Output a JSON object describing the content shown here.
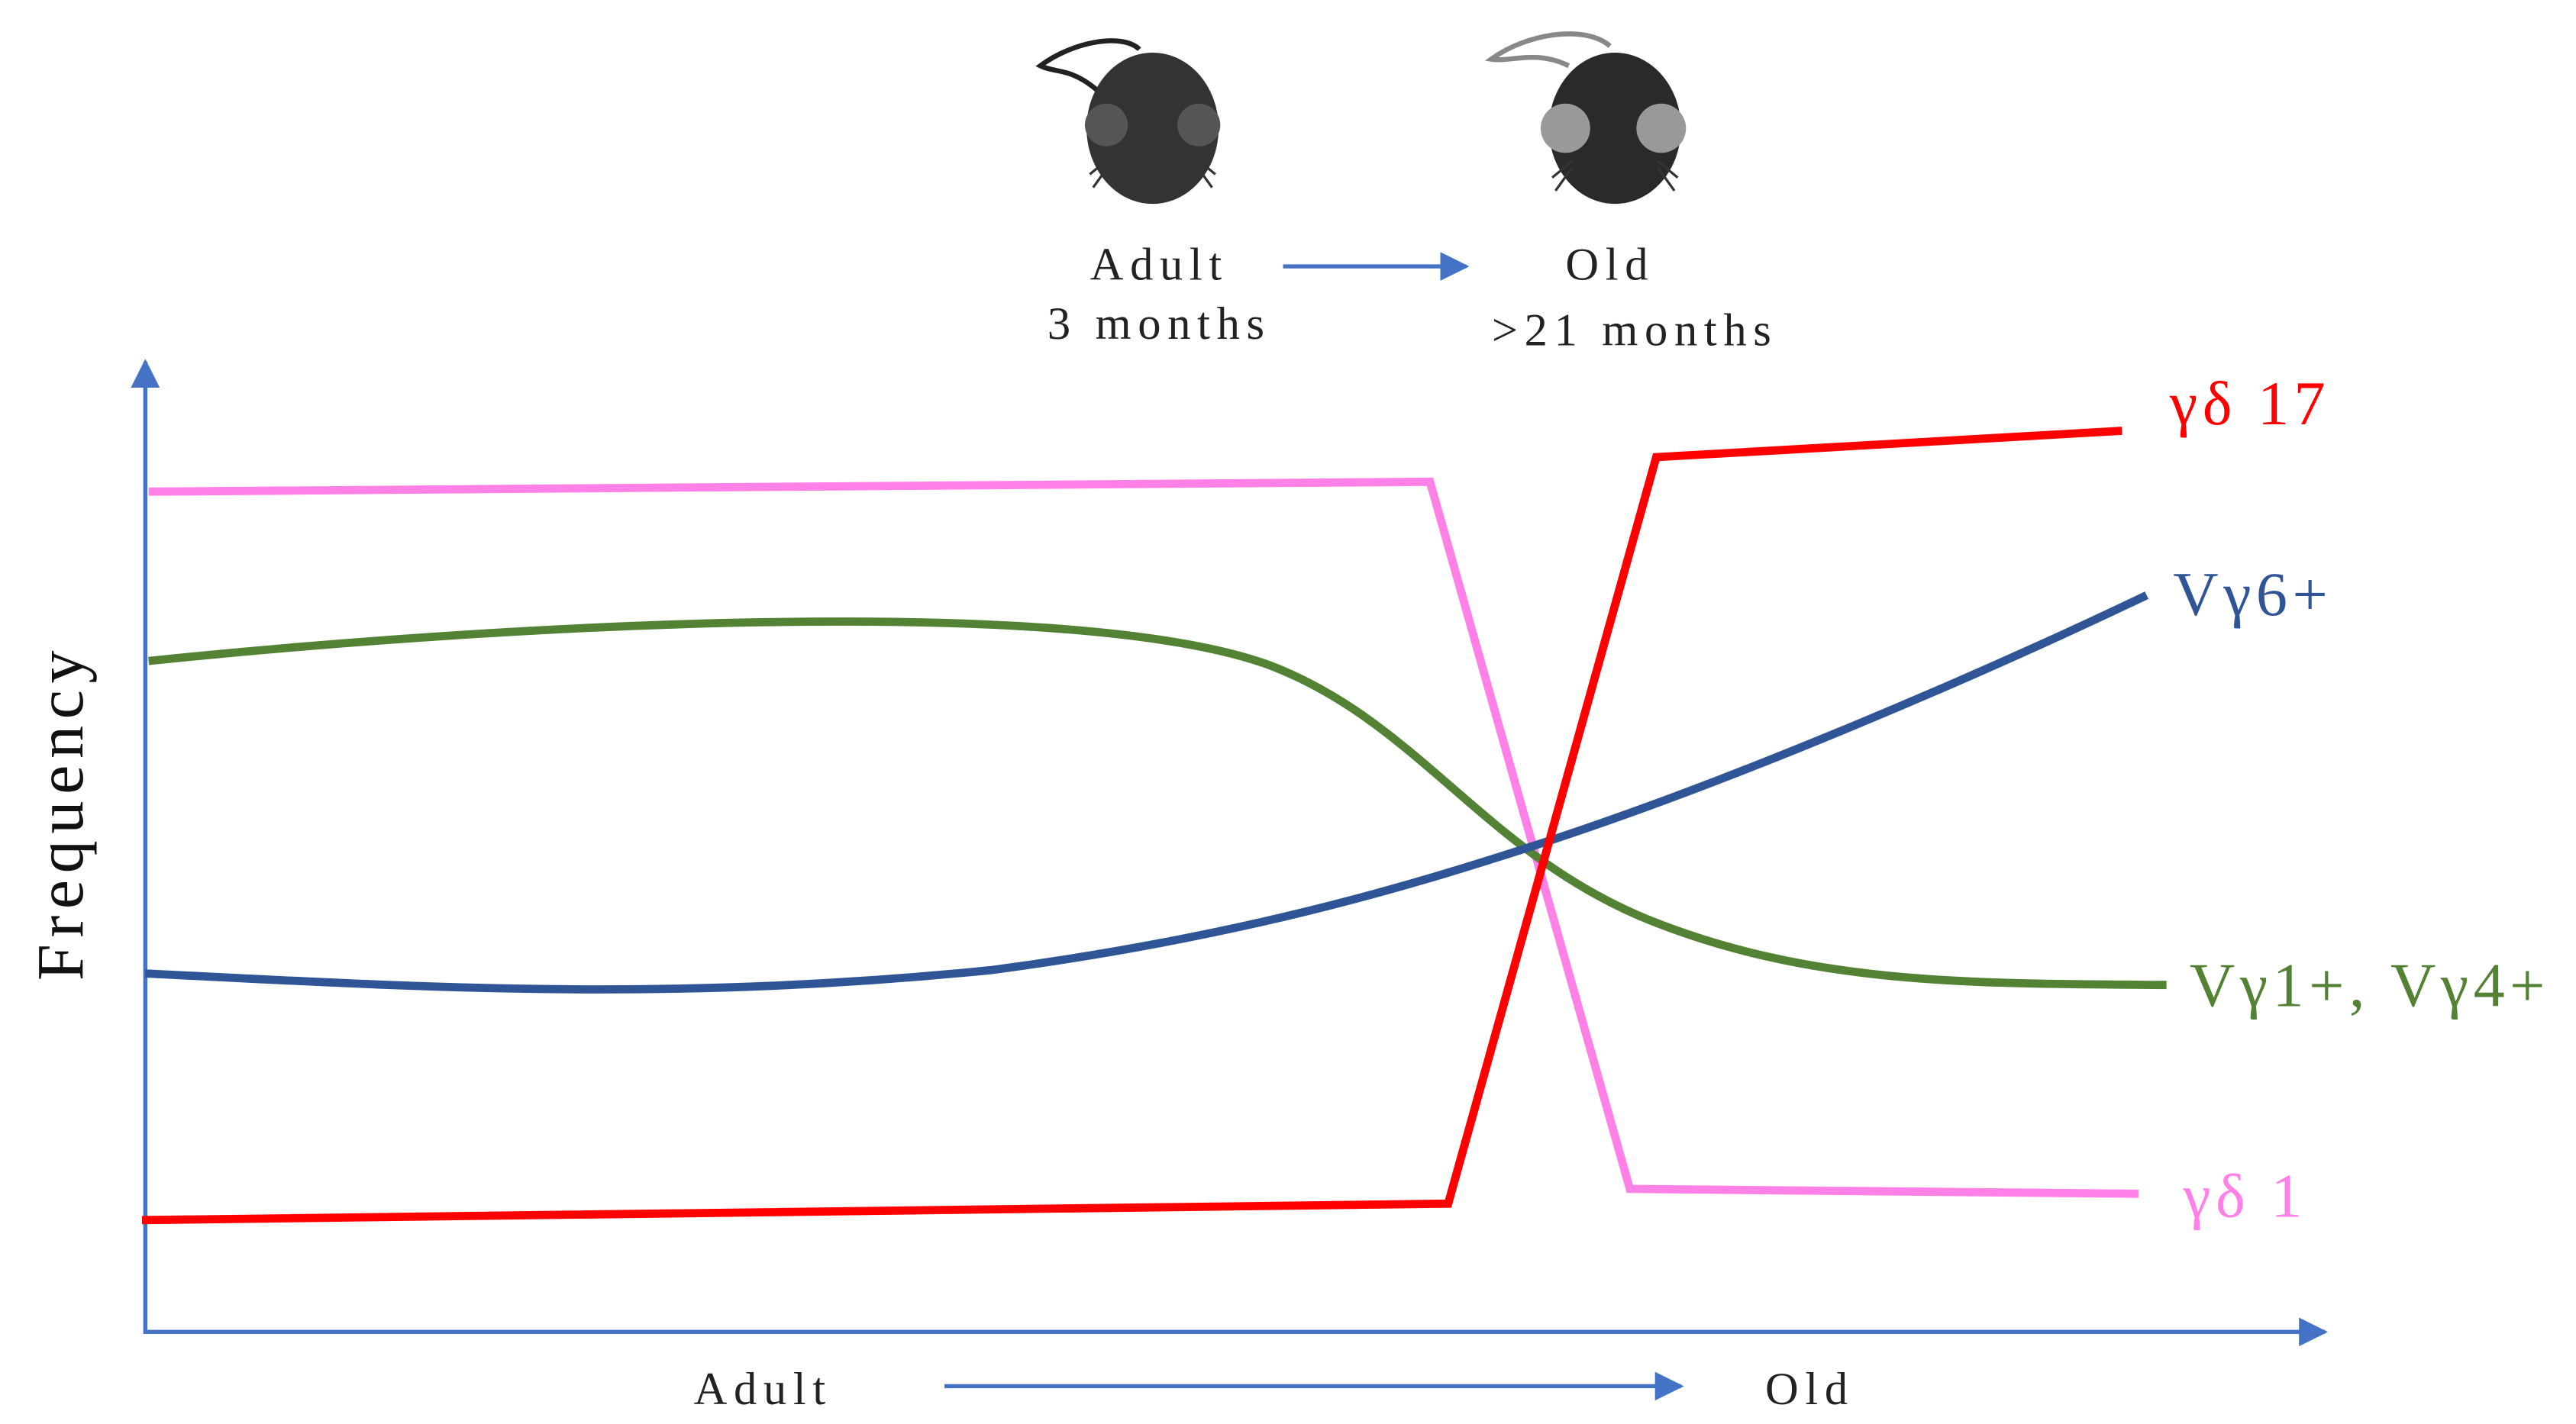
{
  "header": {
    "start": {
      "label": "Adult",
      "age": "3 months"
    },
    "end": {
      "label": "Old",
      "age": ">21 months"
    }
  },
  "axis": {
    "y_label": "Frequency",
    "x_start": "Adult",
    "x_end": "Old"
  },
  "lines": [
    {
      "label": "γδ 17",
      "color": "#ff0000"
    },
    {
      "label": "Vγ6+",
      "color": "#2f5597"
    },
    {
      "label": "Vγ1+, Vγ4+",
      "color": "#548235"
    },
    {
      "label": "γδ 1",
      "color": "#ff80e6"
    }
  ]
}
